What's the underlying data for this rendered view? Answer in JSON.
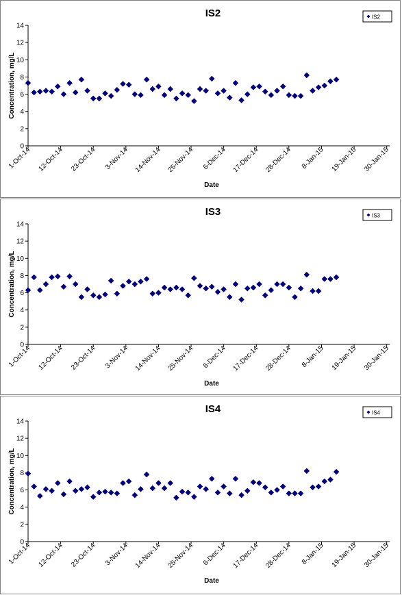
{
  "page": {
    "background": "#ffffff"
  },
  "chart_data": [
    {
      "type": "scatter",
      "title": "IS2",
      "xlabel": "Date",
      "ylabel": "Concentration, mg/L",
      "ylim": [
        0,
        14
      ],
      "yticks": [
        "0",
        "2",
        "4",
        "6",
        "8",
        "10",
        "12",
        "14"
      ],
      "xlim": [
        "2014-10-01",
        "2015-01-31"
      ],
      "xtick_labels": [
        "1-Oct-14",
        "12-Oct-14",
        "23-Oct-14",
        "3-Nov-14",
        "14-Nov-14",
        "25-Nov-14",
        "6-Dec-14",
        "17-Dec-14",
        "28-Dec-14",
        "8-Jan-15",
        "19-Jan-15",
        "30-Jan-15"
      ],
      "grid": false,
      "legend_position": "top-right",
      "marker_color": "#000080",
      "series": [
        {
          "name": "IS2",
          "points": [
            [
              "2014-10-01",
              7.3
            ],
            [
              "2014-10-03",
              6.2
            ],
            [
              "2014-10-05",
              6.3
            ],
            [
              "2014-10-07",
              6.4
            ],
            [
              "2014-10-09",
              6.3
            ],
            [
              "2014-10-11",
              6.9
            ],
            [
              "2014-10-13",
              6.0
            ],
            [
              "2014-10-15",
              7.3
            ],
            [
              "2014-10-17",
              6.2
            ],
            [
              "2014-10-19",
              7.7
            ],
            [
              "2014-10-21",
              6.4
            ],
            [
              "2014-10-23",
              5.5
            ],
            [
              "2014-10-25",
              5.5
            ],
            [
              "2014-10-27",
              6.1
            ],
            [
              "2014-10-29",
              5.8
            ],
            [
              "2014-10-31",
              6.5
            ],
            [
              "2014-11-02",
              7.2
            ],
            [
              "2014-11-04",
              7.1
            ],
            [
              "2014-11-06",
              6.0
            ],
            [
              "2014-11-08",
              5.9
            ],
            [
              "2014-11-10",
              7.7
            ],
            [
              "2014-11-12",
              6.6
            ],
            [
              "2014-11-14",
              6.9
            ],
            [
              "2014-11-16",
              5.9
            ],
            [
              "2014-11-18",
              6.6
            ],
            [
              "2014-11-20",
              5.5
            ],
            [
              "2014-11-22",
              6.1
            ],
            [
              "2014-11-24",
              5.9
            ],
            [
              "2014-11-26",
              5.2
            ],
            [
              "2014-11-28",
              6.6
            ],
            [
              "2014-11-30",
              6.4
            ],
            [
              "2014-12-02",
              7.8
            ],
            [
              "2014-12-04",
              6.1
            ],
            [
              "2014-12-06",
              6.4
            ],
            [
              "2014-12-08",
              5.6
            ],
            [
              "2014-12-10",
              7.3
            ],
            [
              "2014-12-12",
              5.3
            ],
            [
              "2014-12-14",
              6.0
            ],
            [
              "2014-12-16",
              6.8
            ],
            [
              "2014-12-18",
              6.9
            ],
            [
              "2014-12-20",
              6.3
            ],
            [
              "2014-12-22",
              5.9
            ],
            [
              "2014-12-24",
              6.4
            ],
            [
              "2014-12-26",
              6.9
            ],
            [
              "2014-12-28",
              5.9
            ],
            [
              "2014-12-30",
              5.8
            ],
            [
              "2015-01-01",
              5.8
            ],
            [
              "2015-01-03",
              8.2
            ],
            [
              "2015-01-05",
              6.4
            ],
            [
              "2015-01-07",
              6.8
            ],
            [
              "2015-01-09",
              7.0
            ],
            [
              "2015-01-11",
              7.5
            ],
            [
              "2015-01-13",
              7.7
            ]
          ]
        }
      ]
    },
    {
      "type": "scatter",
      "title": "IS3",
      "xlabel": "Date",
      "ylabel": "Concentration, mg/L",
      "ylim": [
        0,
        14
      ],
      "yticks": [
        "0",
        "2",
        "4",
        "6",
        "8",
        "10",
        "12",
        "14"
      ],
      "xlim": [
        "2014-10-01",
        "2015-01-31"
      ],
      "xtick_labels": [
        "1-Oct-14",
        "12-Oct-14",
        "23-Oct-14",
        "3-Nov-14",
        "14-Nov-14",
        "25-Nov-14",
        "6-Dec-14",
        "17-Dec-14",
        "28-Dec-14",
        "8-Jan-15",
        "19-Jan-15",
        "30-Jan-15"
      ],
      "grid": false,
      "legend_position": "top-right",
      "marker_color": "#000080",
      "series": [
        {
          "name": "IS3",
          "points": [
            [
              "2014-10-01",
              6.3
            ],
            [
              "2014-10-03",
              7.8
            ],
            [
              "2014-10-05",
              6.3
            ],
            [
              "2014-10-07",
              7.0
            ],
            [
              "2014-10-09",
              7.8
            ],
            [
              "2014-10-11",
              7.9
            ],
            [
              "2014-10-13",
              6.7
            ],
            [
              "2014-10-15",
              7.9
            ],
            [
              "2014-10-17",
              7.0
            ],
            [
              "2014-10-19",
              5.5
            ],
            [
              "2014-10-21",
              6.4
            ],
            [
              "2014-10-23",
              5.7
            ],
            [
              "2014-10-25",
              5.5
            ],
            [
              "2014-10-27",
              5.8
            ],
            [
              "2014-10-29",
              7.4
            ],
            [
              "2014-10-31",
              5.9
            ],
            [
              "2014-11-02",
              6.8
            ],
            [
              "2014-11-04",
              7.3
            ],
            [
              "2014-11-06",
              7.0
            ],
            [
              "2014-11-08",
              7.3
            ],
            [
              "2014-11-10",
              7.6
            ],
            [
              "2014-11-12",
              5.9
            ],
            [
              "2014-11-14",
              6.0
            ],
            [
              "2014-11-16",
              6.6
            ],
            [
              "2014-11-18",
              6.4
            ],
            [
              "2014-11-20",
              6.6
            ],
            [
              "2014-11-22",
              6.4
            ],
            [
              "2014-11-24",
              5.7
            ],
            [
              "2014-11-26",
              7.7
            ],
            [
              "2014-11-28",
              6.8
            ],
            [
              "2014-11-30",
              6.5
            ],
            [
              "2014-12-02",
              6.7
            ],
            [
              "2014-12-04",
              6.1
            ],
            [
              "2014-12-06",
              6.4
            ],
            [
              "2014-12-08",
              5.5
            ],
            [
              "2014-12-10",
              7.0
            ],
            [
              "2014-12-12",
              5.2
            ],
            [
              "2014-12-14",
              6.5
            ],
            [
              "2014-12-16",
              6.6
            ],
            [
              "2014-12-18",
              7.0
            ],
            [
              "2014-12-20",
              5.7
            ],
            [
              "2014-12-22",
              6.3
            ],
            [
              "2014-12-24",
              7.0
            ],
            [
              "2014-12-26",
              7.0
            ],
            [
              "2014-12-28",
              6.6
            ],
            [
              "2014-12-30",
              5.5
            ],
            [
              "2015-01-01",
              6.5
            ],
            [
              "2015-01-03",
              8.1
            ],
            [
              "2015-01-05",
              6.2
            ],
            [
              "2015-01-07",
              6.2
            ],
            [
              "2015-01-09",
              7.6
            ],
            [
              "2015-01-11",
              7.6
            ],
            [
              "2015-01-13",
              7.8
            ]
          ]
        }
      ]
    },
    {
      "type": "scatter",
      "title": "IS4",
      "xlabel": "Date",
      "ylabel": "Concentration, mg/L",
      "ylim": [
        0,
        14
      ],
      "yticks": [
        "0",
        "2",
        "4",
        "6",
        "8",
        "10",
        "12",
        "14"
      ],
      "xlim": [
        "2014-10-01",
        "2015-01-31"
      ],
      "xtick_labels": [
        "1-Oct-14",
        "12-Oct-14",
        "23-Oct-14",
        "3-Nov-14",
        "14-Nov-14",
        "25-Nov-14",
        "6-Dec-14",
        "17-Dec-14",
        "28-Dec-14",
        "8-Jan-15",
        "19-Jan-15",
        "30-Jan-15"
      ],
      "grid": false,
      "legend_position": "top-right",
      "marker_color": "#000080",
      "series": [
        {
          "name": "IS4",
          "points": [
            [
              "2014-10-01",
              7.9
            ],
            [
              "2014-10-03",
              6.4
            ],
            [
              "2014-10-05",
              5.3
            ],
            [
              "2014-10-07",
              6.1
            ],
            [
              "2014-10-09",
              5.9
            ],
            [
              "2014-10-11",
              6.8
            ],
            [
              "2014-10-13",
              5.5
            ],
            [
              "2014-10-15",
              7.0
            ],
            [
              "2014-10-17",
              5.9
            ],
            [
              "2014-10-19",
              6.1
            ],
            [
              "2014-10-21",
              6.3
            ],
            [
              "2014-10-23",
              5.2
            ],
            [
              "2014-10-25",
              5.7
            ],
            [
              "2014-10-27",
              5.8
            ],
            [
              "2014-10-29",
              5.7
            ],
            [
              "2014-10-31",
              5.6
            ],
            [
              "2014-11-02",
              6.8
            ],
            [
              "2014-11-04",
              7.0
            ],
            [
              "2014-11-06",
              5.4
            ],
            [
              "2014-11-08",
              6.1
            ],
            [
              "2014-11-10",
              7.8
            ],
            [
              "2014-11-12",
              6.2
            ],
            [
              "2014-11-14",
              6.8
            ],
            [
              "2014-11-16",
              6.2
            ],
            [
              "2014-11-18",
              6.8
            ],
            [
              "2014-11-20",
              5.1
            ],
            [
              "2014-11-22",
              5.8
            ],
            [
              "2014-11-24",
              5.7
            ],
            [
              "2014-11-26",
              5.2
            ],
            [
              "2014-11-28",
              6.4
            ],
            [
              "2014-11-30",
              6.1
            ],
            [
              "2014-12-02",
              7.3
            ],
            [
              "2014-12-04",
              5.7
            ],
            [
              "2014-12-06",
              6.4
            ],
            [
              "2014-12-08",
              5.6
            ],
            [
              "2014-12-10",
              7.3
            ],
            [
              "2014-12-12",
              5.4
            ],
            [
              "2014-12-14",
              5.9
            ],
            [
              "2014-12-16",
              6.9
            ],
            [
              "2014-12-18",
              6.8
            ],
            [
              "2014-12-20",
              6.3
            ],
            [
              "2014-12-22",
              5.7
            ],
            [
              "2014-12-24",
              6.0
            ],
            [
              "2014-12-26",
              6.4
            ],
            [
              "2014-12-28",
              5.6
            ],
            [
              "2014-12-30",
              5.6
            ],
            [
              "2015-01-01",
              5.6
            ],
            [
              "2015-01-03",
              8.2
            ],
            [
              "2015-01-05",
              6.3
            ],
            [
              "2015-01-07",
              6.4
            ],
            [
              "2015-01-09",
              7.0
            ],
            [
              "2015-01-11",
              7.2
            ],
            [
              "2015-01-13",
              8.1
            ]
          ]
        }
      ]
    }
  ]
}
